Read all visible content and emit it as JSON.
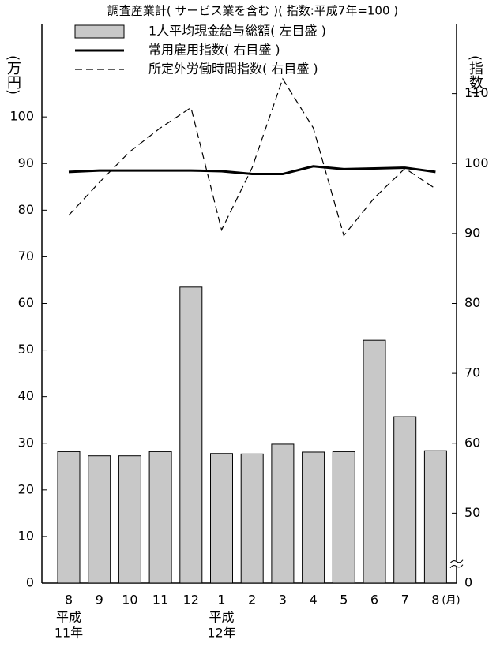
{
  "chart_data": {
    "type": "bar_line",
    "title": "調査産業計( サービス業を含む )( 指数:平成7年=100 )",
    "y_label": "(万円)",
    "y2_label": "(指数)",
    "x_unit": "(月)",
    "categories": [
      "8",
      "9",
      "10",
      "11",
      "12",
      "1",
      "2",
      "3",
      "4",
      "5",
      "6",
      "7",
      "8"
    ],
    "era_labels": [
      [
        "平成",
        "11年"
      ],
      null,
      null,
      null,
      null,
      [
        "平成",
        "12年"
      ],
      null,
      null,
      null,
      null,
      null,
      null,
      null
    ],
    "ylim": [
      0,
      120
    ],
    "yticks": [
      0,
      10,
      20,
      30,
      40,
      50,
      60,
      70,
      80,
      90,
      100
    ],
    "y2lim": [
      40,
      120
    ],
    "y2ticks": [
      {
        "value": 40,
        "label": "0"
      },
      50,
      60,
      70,
      80,
      90,
      100,
      110
    ],
    "y2_break": true,
    "series": [
      {
        "name": "1人平均現金給与総額( 左目盛 )",
        "type": "bar",
        "color": "#c8c8c8",
        "values": [
          28.2,
          27.3,
          27.3,
          28.2,
          63.5,
          27.8,
          27.7,
          29.8,
          28.1,
          28.2,
          52.1,
          35.7,
          28.4
        ]
      },
      {
        "name": "常用雇用指数( 右目盛 )",
        "type": "line",
        "axis": "y2",
        "color": "#000000",
        "dash": false,
        "values": [
          98.8,
          99.0,
          99.0,
          99.0,
          99.0,
          98.9,
          98.5,
          98.5,
          99.6,
          99.2,
          99.3,
          99.4,
          98.8
        ]
      },
      {
        "name": "所定外労働時間指数( 右目盛 )",
        "type": "line",
        "axis": "y2",
        "color": "#000000",
        "dash": true,
        "values": [
          92.6,
          97.3,
          101.7,
          105.1,
          108.0,
          90.5,
          99.4,
          112.1,
          105.1,
          89.7,
          95.1,
          99.3,
          96.4
        ]
      }
    ]
  }
}
